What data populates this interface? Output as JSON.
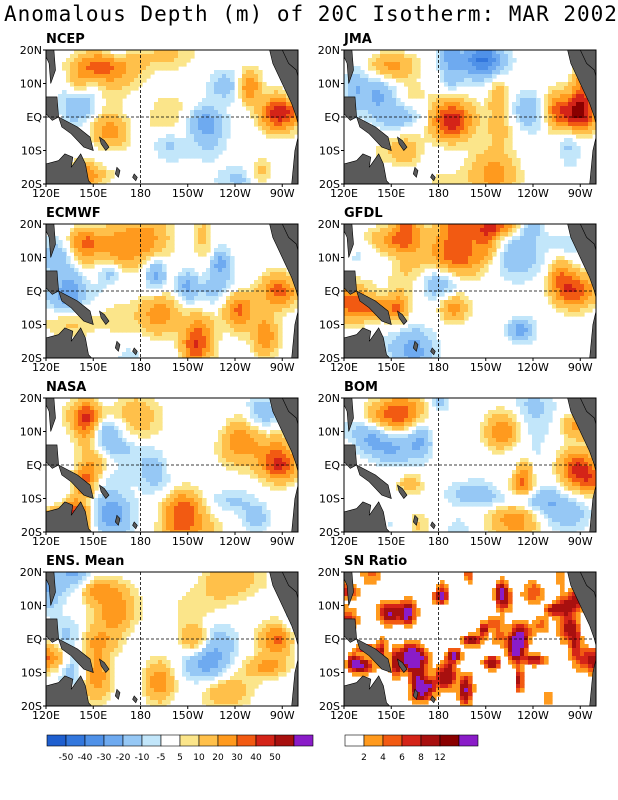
{
  "title": "Anomalous Depth (m) of 20C Isotherm: MAR 2002",
  "axes": {
    "x_ticks": [
      "120E",
      "150E",
      "180",
      "150W",
      "120W",
      "90W"
    ],
    "y_ticks": [
      "20N",
      "10N",
      "EQ",
      "10S",
      "20S"
    ]
  },
  "panels": [
    {
      "label": "NCEP",
      "kind": "anomaly",
      "seed": 11
    },
    {
      "label": "JMA",
      "kind": "anomaly",
      "seed": 23
    },
    {
      "label": "ECMWF",
      "kind": "anomaly",
      "seed": 37
    },
    {
      "label": "GFDL",
      "kind": "anomaly",
      "seed": 41
    },
    {
      "label": "NASA",
      "kind": "anomaly",
      "seed": 53
    },
    {
      "label": "BOM",
      "kind": "anomaly",
      "seed": 67
    },
    {
      "label": "ENS. Mean",
      "kind": "anomaly",
      "seed": 71
    },
    {
      "label": "SN Ratio",
      "kind": "snr",
      "seed": 89
    }
  ],
  "anomaly_scale": {
    "labels": [
      "-50",
      "-40",
      "-30",
      "-20",
      "-10",
      "-5",
      "5",
      "10",
      "20",
      "30",
      "40",
      "50"
    ],
    "colors": [
      "#1f5fcf",
      "#3377dd",
      "#4f91e8",
      "#6eaaf0",
      "#96c8f5",
      "#c2e6fa",
      "#ffffff",
      "#fbe58a",
      "#ffc04a",
      "#ff9a1e",
      "#f25a12",
      "#d42418",
      "#a8100f",
      "#8a0000",
      "#8a1cc8"
    ]
  },
  "snr_scale": {
    "labels": [
      "2",
      "4",
      "6",
      "8",
      "12"
    ],
    "colors": [
      "#ffffff",
      "#ff9a1e",
      "#f25a12",
      "#d42418",
      "#a8100f",
      "#8a0000",
      "#8a1cc8"
    ]
  }
}
